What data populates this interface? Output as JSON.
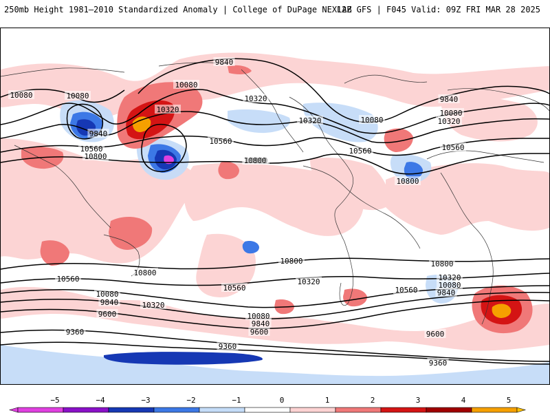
{
  "header": {
    "title_left": "250mb Height 1981–2010 Standardized Anomaly | College of DuPage NEXLAB",
    "title_right": "12Z GFS | F045 Valid: 09Z FRI MAR 28 2025"
  },
  "colors": {
    "neg5": "#e040e0",
    "neg4": "#8a10c8",
    "neg3": "#1638b4",
    "neg2": "#3c78e6",
    "neg1": "#c4dcf8",
    "pos1": "#fcd2d2",
    "pos2": "#f07878",
    "pos3": "#d41414",
    "pos4": "#a00000",
    "pos5": "#f6a000",
    "pos6": "#ffc000"
  },
  "colorbar": {
    "ticks": [
      "−5",
      "−4",
      "−3",
      "−2",
      "−1",
      "0",
      "1",
      "2",
      "3",
      "4",
      "5"
    ]
  },
  "contour_labels": [
    "9840",
    "10080",
    "10080",
    "10320",
    "10080",
    "9840",
    "10560",
    "10800",
    "10560",
    "10800",
    "10320",
    "10080",
    "9840",
    "10080",
    "10320",
    "10320",
    "10560",
    "10560",
    "10800",
    "10800",
    "10800",
    "10560",
    "10800",
    "10560",
    "10320",
    "10080",
    "9840",
    "10320",
    "10560",
    "10800",
    "10320",
    "10080",
    "9840",
    "9600",
    "10080",
    "9840",
    "9600",
    "9360",
    "9360",
    "9600",
    "9360"
  ]
}
